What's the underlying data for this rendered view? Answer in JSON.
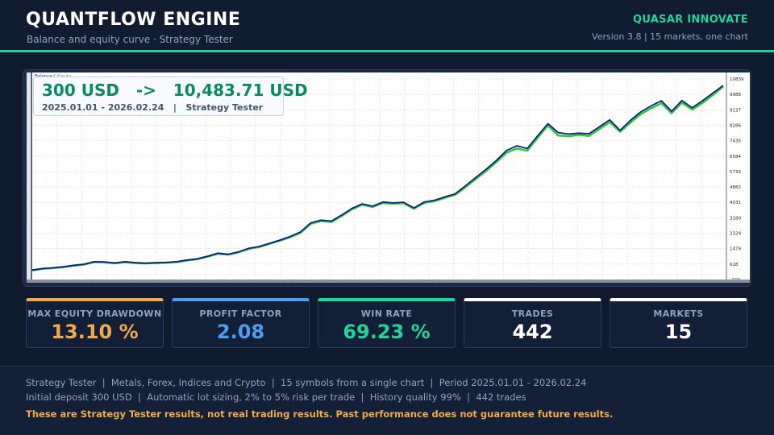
{
  "header": {
    "title": "QUANTFLOW ENGINE",
    "subtitle": "Balance and equity curve  ·  Strategy Tester",
    "brand": "QUASAR INNOVATE",
    "version_line": "Version 3.8   |   15 markets, one chart"
  },
  "overlay": {
    "amount": "300 USD   ->   10,483.71 USD",
    "subtitle": "2025.01.01 - 2026.02.24   |   Strategy Tester"
  },
  "colors": {
    "balance": "#0d1f8a",
    "equity": "#2ec93a",
    "accent": "#1fcf98",
    "orange": "#f2a94b",
    "blue": "#4b9ef2",
    "green": "#22d39c",
    "white": "#ffffff"
  },
  "chart_data": {
    "type": "line",
    "legend": [
      "Balance",
      "Equity"
    ],
    "legend_position": "top-left",
    "grid": true,
    "ylim": [
      -223,
      11000
    ],
    "y_ticks": [
      "10839",
      "9988",
      "9137",
      "8286",
      "7435",
      "6584",
      "5733",
      "4882",
      "4031",
      "3180",
      "2329",
      "1479",
      "628",
      "-223"
    ],
    "series": [
      {
        "name": "Balance",
        "values": [
          300,
          380,
          420,
          480,
          560,
          620,
          760,
          740,
          690,
          760,
          700,
          680,
          700,
          720,
          760,
          850,
          920,
          1060,
          1230,
          1170,
          1300,
          1500,
          1600,
          1770,
          1950,
          2150,
          2400,
          2900,
          3050,
          3000,
          3330,
          3700,
          3950,
          3820,
          4050,
          4000,
          4040,
          3720,
          4050,
          4150,
          4330,
          4500,
          4940,
          5400,
          5850,
          6340,
          6900,
          7150,
          7000,
          7700,
          8380,
          7880,
          7800,
          7850,
          7820,
          8200,
          8580,
          8000,
          8550,
          9020,
          9350,
          9640,
          9050,
          9650,
          9250,
          9640,
          10060,
          10480
        ]
      },
      {
        "name": "Equity",
        "values": [
          280,
          370,
          410,
          460,
          540,
          600,
          740,
          730,
          670,
          740,
          690,
          670,
          690,
          710,
          740,
          830,
          900,
          1040,
          1200,
          1150,
          1280,
          1470,
          1570,
          1750,
          1920,
          2110,
          2350,
          2850,
          3000,
          2950,
          3280,
          3650,
          3900,
          3780,
          4000,
          3960,
          3990,
          3680,
          4000,
          4100,
          4280,
          4450,
          4870,
          5320,
          5760,
          6250,
          6780,
          7000,
          6880,
          7600,
          8270,
          7720,
          7680,
          7760,
          7700,
          8080,
          8460,
          7920,
          8430,
          8900,
          9220,
          9500,
          8950,
          9530,
          9150,
          9520,
          9950,
          10420
        ]
      }
    ]
  },
  "cards": [
    {
      "label": "MAX EQUITY DRAWDOWN",
      "value": "13.10 %"
    },
    {
      "label": "PROFIT FACTOR",
      "value": "2.08"
    },
    {
      "label": "WIN RATE",
      "value": "69.23 %"
    },
    {
      "label": "TRADES",
      "value": "442"
    },
    {
      "label": "MARKETS",
      "value": "15"
    }
  ],
  "footer": {
    "line1": "Strategy Tester  |  Metals, Forex, Indices and Crypto  |  15 symbols from a single chart  |  Period 2025.01.01 - 2026.02.24",
    "line2": "Initial deposit 300 USD  |  Automatic lot sizing, 2% to 5% risk per trade  |  History quality 99%  |  442 trades",
    "warning": "These are Strategy Tester results, not real trading results. Past performance does not guarantee future results."
  }
}
